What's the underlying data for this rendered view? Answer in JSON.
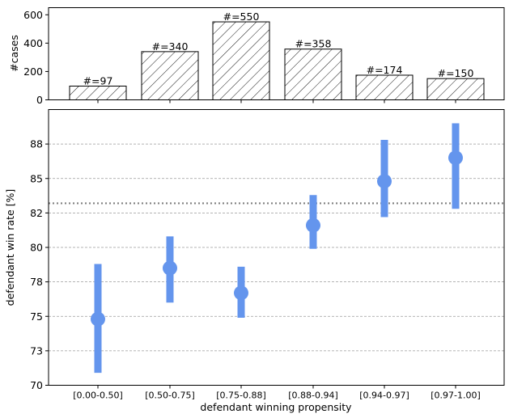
{
  "chart_data": [
    {
      "type": "bar",
      "ylabel": "#cases",
      "ylim": [
        0,
        650
      ],
      "yticks": [
        0,
        200,
        400,
        600
      ],
      "categories": [
        "[0.00-0.50]",
        "[0.50-0.75]",
        "[0.75-0.88]",
        "[0.88-0.94]",
        "[0.94-0.97]",
        "[0.97-1.00]"
      ],
      "values": [
        97,
        340,
        550,
        358,
        174,
        150
      ],
      "data_labels": [
        "#=97",
        "#=340",
        "#=550",
        "#=358",
        "#=174",
        "#=150"
      ],
      "hatch": "diagonal",
      "bar_fill": "#ffffff",
      "bar_edge": "#000000"
    },
    {
      "type": "scatter",
      "xlabel": "defendant winning propensity",
      "ylabel": "defendant win rate [%]",
      "ylim": [
        70,
        90
      ],
      "yticks": [
        70,
        72.5,
        75,
        77.5,
        80,
        82.5,
        85,
        87.5
      ],
      "ytick_labels": [
        "70",
        "73",
        "75",
        "78",
        "80",
        "82",
        "85",
        "88"
      ],
      "categories": [
        "[0.00-0.50]",
        "[0.50-0.75]",
        "[0.75-0.88]",
        "[0.88-0.94]",
        "[0.94-0.97]",
        "[0.97-1.00]"
      ],
      "values": [
        74.8,
        78.5,
        76.7,
        81.6,
        84.8,
        86.5
      ],
      "error_low": [
        70.9,
        76.0,
        74.9,
        79.9,
        82.2,
        82.8
      ],
      "error_high": [
        78.8,
        80.8,
        78.6,
        83.8,
        87.8,
        89.0
      ],
      "reference_line": 83.2,
      "grid": true,
      "color": "#6495ed"
    }
  ]
}
